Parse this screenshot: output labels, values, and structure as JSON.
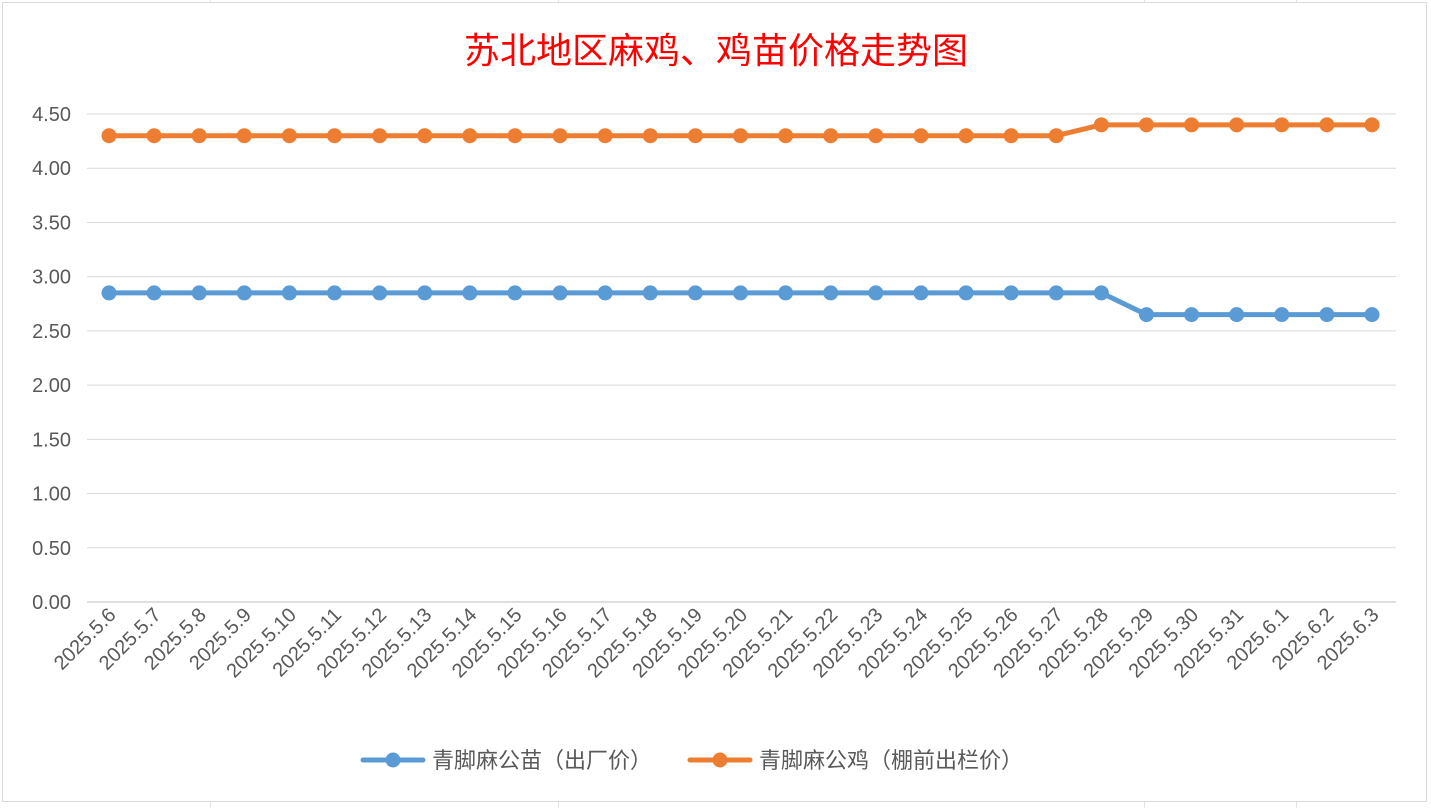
{
  "chart_data": {
    "type": "line",
    "title": "苏北地区麻鸡、鸡苗价格走势图",
    "categories": [
      "2025.5.6",
      "2025.5.7",
      "2025.5.8",
      "2025.5.9",
      "2025.5.10",
      "2025.5.11",
      "2025.5.12",
      "2025.5.13",
      "2025.5.14",
      "2025.5.15",
      "2025.5.16",
      "2025.5.17",
      "2025.5.18",
      "2025.5.19",
      "2025.5.20",
      "2025.5.21",
      "2025.5.22",
      "2025.5.23",
      "2025.5.24",
      "2025.5.25",
      "2025.5.26",
      "2025.5.27",
      "2025.5.28",
      "2025.5.29",
      "2025.5.30",
      "2025.5.31",
      "2025.6.1",
      "2025.6.2",
      "2025.6.3"
    ],
    "yticks": [
      "0.00",
      "0.50",
      "1.00",
      "1.50",
      "2.00",
      "2.50",
      "3.00",
      "3.50",
      "4.00",
      "4.50"
    ],
    "ylim": [
      0,
      4.5
    ],
    "grid": true,
    "legend_position": "bottom",
    "series": [
      {
        "name": "青脚麻公苗（出厂价）",
        "color": "#5b9bd5",
        "values": [
          2.85,
          2.85,
          2.85,
          2.85,
          2.85,
          2.85,
          2.85,
          2.85,
          2.85,
          2.85,
          2.85,
          2.85,
          2.85,
          2.85,
          2.85,
          2.85,
          2.85,
          2.85,
          2.85,
          2.85,
          2.85,
          2.85,
          2.85,
          2.65,
          2.65,
          2.65,
          2.65,
          2.65,
          2.65
        ]
      },
      {
        "name": "青脚麻公鸡（棚前出栏价）",
        "color": "#ed7d31",
        "values": [
          4.3,
          4.3,
          4.3,
          4.3,
          4.3,
          4.3,
          4.3,
          4.3,
          4.3,
          4.3,
          4.3,
          4.3,
          4.3,
          4.3,
          4.3,
          4.3,
          4.3,
          4.3,
          4.3,
          4.3,
          4.3,
          4.3,
          4.4,
          4.4,
          4.4,
          4.4,
          4.4,
          4.4,
          4.4
        ]
      }
    ],
    "title_color": "#ff0000"
  }
}
